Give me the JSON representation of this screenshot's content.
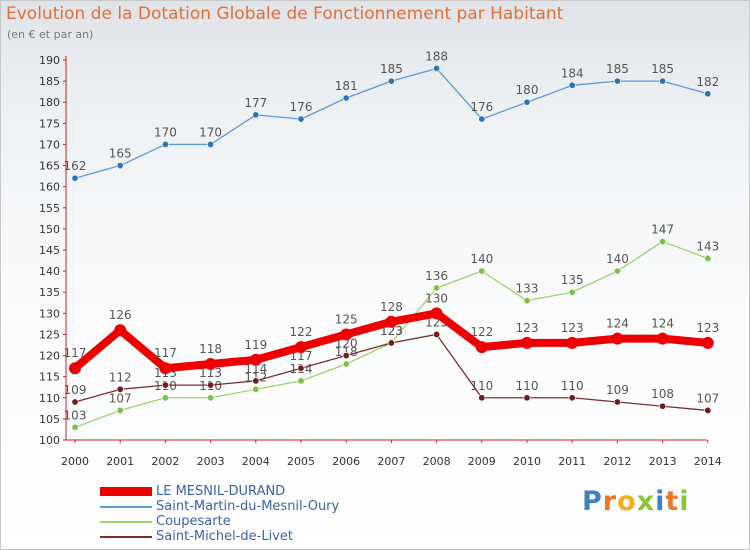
{
  "title": "Evolution de la Dotation Globale de Fonctionnement par Habitant",
  "subtitle": "(en € et par an)",
  "logo": {
    "text": "Proxiti",
    "letters": [
      {
        "ch": "P",
        "color": "#3f82c4"
      },
      {
        "ch": "r",
        "color": "#e8782c"
      },
      {
        "ch": "o",
        "color": "#f2b01e"
      },
      {
        "ch": "x",
        "color": "#8cc43c"
      },
      {
        "ch": "i",
        "color": "#3f82c4"
      },
      {
        "ch": "t",
        "color": "#e8782c"
      },
      {
        "ch": "i",
        "color": "#8cc43c"
      }
    ]
  },
  "chart_data": {
    "type": "line",
    "title": "Evolution de la Dotation Globale de Fonctionnement par Habitant",
    "subtitle": "(en € et par an)",
    "xlabel": "",
    "ylabel": "",
    "x": [
      "2000",
      "2001",
      "2002",
      "2003",
      "2004",
      "2005",
      "2006",
      "2007",
      "2008",
      "2009",
      "2010",
      "2011",
      "2012",
      "2013",
      "2014"
    ],
    "ylim": [
      100,
      190
    ],
    "yticks": [
      100,
      105,
      110,
      115,
      120,
      125,
      130,
      135,
      140,
      145,
      150,
      155,
      160,
      165,
      170,
      175,
      180,
      185,
      190
    ],
    "grid": false,
    "legend_position": "bottom-left",
    "series": [
      {
        "name": "Saint-Martin-du-Mesnil-Oury",
        "color": "#5b9bd5",
        "marker": "#2e75b6",
        "values": [
          162,
          165,
          170,
          170,
          177,
          176,
          181,
          185,
          188,
          176,
          180,
          184,
          185,
          185,
          182
        ]
      },
      {
        "name": "Coupesarte",
        "color": "#99d46a",
        "marker": "#7cc24a",
        "values": [
          103,
          107,
          110,
          110,
          112,
          114,
          118,
          123,
          136,
          140,
          133,
          135,
          140,
          147,
          143
        ]
      },
      {
        "name": "Saint-Michel-de-Livet",
        "color": "#7a2e2e",
        "marker": "#6a1f1f",
        "values": [
          109,
          112,
          113,
          113,
          114,
          117,
          120,
          123,
          125,
          110,
          110,
          110,
          109,
          108,
          107
        ]
      },
      {
        "name": "LE MESNIL-DURAND",
        "color": "#ee0000",
        "marker": "#ee0000",
        "values": [
          117,
          126,
          117,
          118,
          119,
          122,
          125,
          128,
          130,
          122,
          123,
          123,
          124,
          124,
          123
        ]
      }
    ],
    "legend_order": [
      "LE MESNIL-DURAND",
      "Saint-Martin-du-Mesnil-Oury",
      "Coupesarte",
      "Saint-Michel-de-Livet"
    ]
  }
}
